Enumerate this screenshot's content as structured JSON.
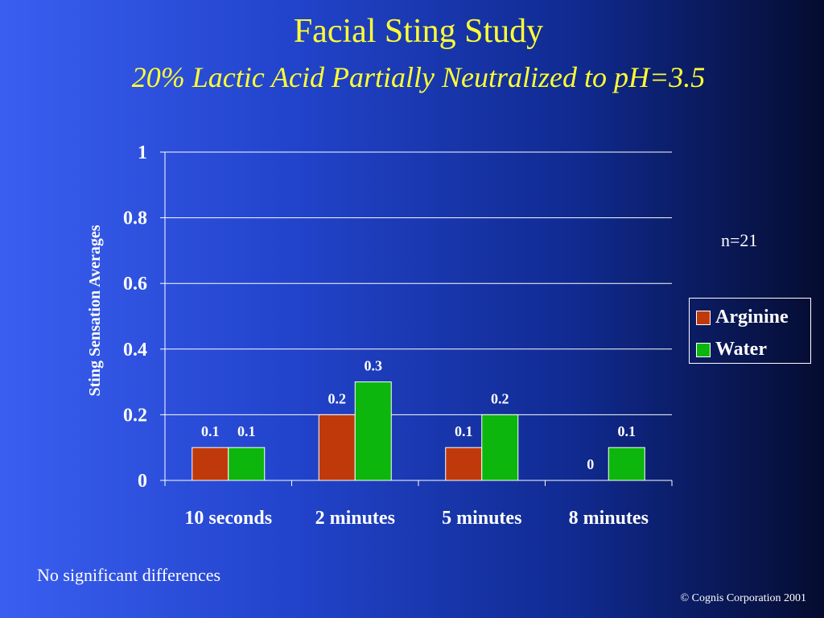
{
  "slide": {
    "title": "Facial Sting Study",
    "subtitle": "20% Lactic Acid Partially Neutralized to pH=3.5",
    "sample_size": "n=21",
    "footnote": "No significant differences",
    "copyright": "© Cognis Corporation 2001"
  },
  "chart_data": {
    "type": "bar",
    "title": "",
    "xlabel": "",
    "ylabel": "Sting Sensation Averages",
    "categories": [
      "10 seconds",
      "2 minutes",
      "5 minutes",
      "8 minutes"
    ],
    "series": [
      {
        "name": "Arginine",
        "values": [
          0.1,
          0.2,
          0.1,
          0
        ],
        "labels": [
          "0.1",
          "0.2",
          "0.1",
          "0"
        ],
        "color": "#c0390b"
      },
      {
        "name": "Water",
        "values": [
          0.1,
          0.3,
          0.2,
          0.1
        ],
        "labels": [
          "0.1",
          "0.3",
          "0.2",
          "0.1"
        ],
        "color": "#0cb60c"
      }
    ],
    "ylim": [
      0,
      1
    ],
    "yticks": [
      0,
      0.2,
      0.4,
      0.6,
      0.8,
      1
    ],
    "ytick_labels": [
      "0",
      "0.2",
      "0.4",
      "0.6",
      "0.8",
      "1"
    ],
    "grid": true,
    "legend": "right"
  }
}
